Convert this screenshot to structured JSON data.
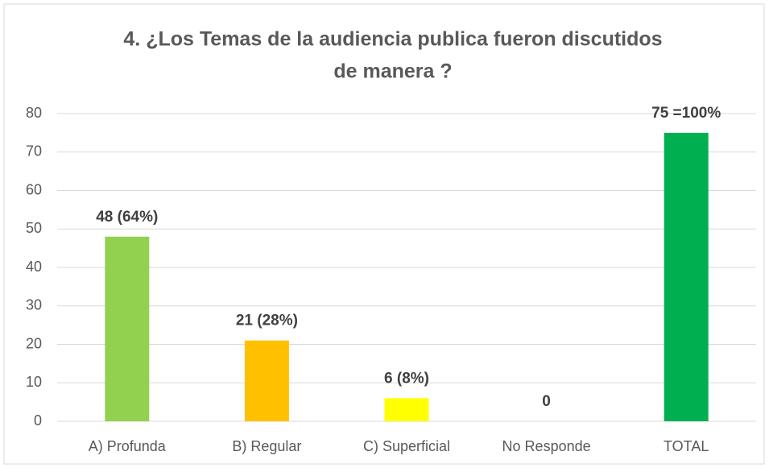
{
  "chart_data": {
    "type": "bar",
    "title": [
      "4. ¿Los Temas de la audiencia publica fueron discutidos",
      "de manera ?"
    ],
    "categories": [
      "A) Profunda",
      "B) Regular",
      "C) Superficial",
      "No Responde",
      "TOTAL"
    ],
    "values": [
      48,
      21,
      6,
      0,
      75
    ],
    "value_labels": [
      "48  (64%)",
      "21  (28%)",
      "6  (8%)",
      "0",
      "75  =100%"
    ],
    "colors": [
      "#92d050",
      "#ffc000",
      "#ffff00",
      "#a5a5a5",
      "#00b050"
    ],
    "ylim": [
      0,
      80
    ],
    "yticks": [
      0,
      10,
      20,
      30,
      40,
      50,
      60,
      70,
      80
    ],
    "grid": true
  }
}
